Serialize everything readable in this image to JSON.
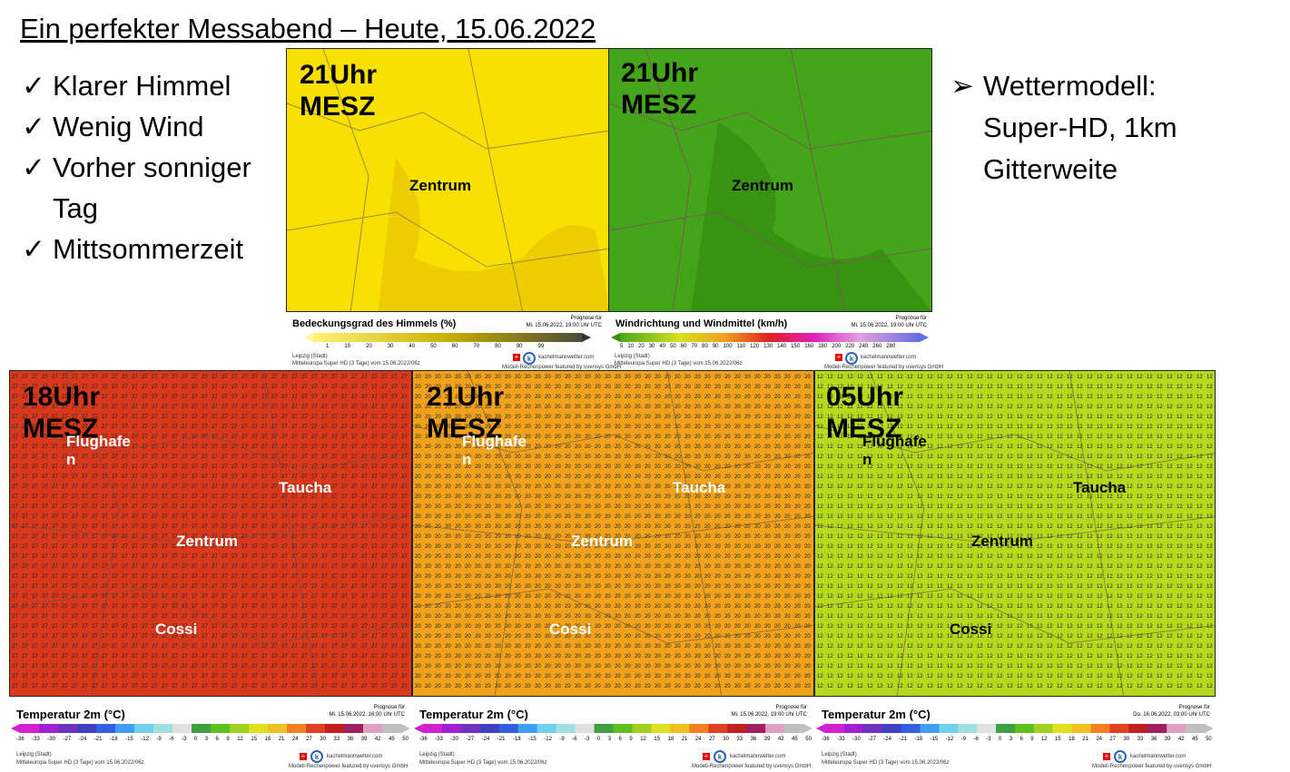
{
  "title": "Ein perfekter Messabend – Heute, 15.06.2022",
  "checklist": [
    {
      "icon": "check-icon",
      "label": "Klarer Himmel"
    },
    {
      "icon": "check-icon",
      "label": "Wenig Wind"
    },
    {
      "icon": "check-icon",
      "label": "Vorher sonniger\nTag"
    },
    {
      "icon": "check-icon",
      "label": "Mittsommerzeit"
    }
  ],
  "model_note": {
    "icon": "arrow-bullet-icon",
    "text": "Wettermodell:\nSuper-HD, 1km\nGitterweite"
  },
  "top_maps": [
    {
      "time": "21Uhr\nMESZ",
      "center": "Zentrum",
      "color": "#f5dc00",
      "legend_title": "Bedeckungsgrad des Himmels (%)",
      "forecast_label": "Prognose für",
      "forecast": "Mi. 15.06.2022, 19:00 Uhr UTC",
      "scale": [
        "1",
        "10",
        "20",
        "30",
        "40",
        "50",
        "60",
        "70",
        "80",
        "90",
        "99"
      ],
      "location": "Leipzig (Stadt)",
      "model": "Mitteleuropa Super HD (3 Tage) vom 15.06.2022/06z",
      "brand": "kachelmannwetter.com",
      "credit": "Modell-Rechenpower featured by uvensys GmbH"
    },
    {
      "time": "21Uhr\nMESZ",
      "center": "Zentrum",
      "color": "#3f9d17",
      "legend_title": "Windrichtung und Windmittel (km/h)",
      "forecast_label": "Prognose für",
      "forecast": "Mi. 15.06.2022, 19:00 Uhr UTC",
      "scale": [
        "5",
        "10",
        "20",
        "30",
        "40",
        "50",
        "60",
        "70",
        "80",
        "90",
        "100",
        "110",
        "120",
        "130",
        "140",
        "150",
        "160",
        "180",
        "200",
        "220",
        "240",
        "260",
        "280"
      ],
      "location": "Leipzig (Stadt)",
      "model": "Mitteleuropa Super HD (3 Tage) vom 15.06.2022/06z",
      "brand": "kachelmannwetter.com",
      "credit": "Modell-Rechenpower featured by uvensys GmbH"
    }
  ],
  "bottom_maps": [
    {
      "time": "18Uhr\nMESZ",
      "flughafen": "Flughafe\nn",
      "taucha": "Taucha",
      "center": "Zentrum",
      "cossi": "Cossi",
      "color": "#d8391c",
      "value": "27",
      "legend_title": "Temperatur 2m (°C)",
      "forecast_label": "Prognose für",
      "forecast": "Mi. 15.06.2022, 16:00 Uhr UTC",
      "location": "Leipzig (Stadt)",
      "model": "Mitteleuropa Super HD (3 Tage) vom 15.06.2022/06z",
      "brand": "kachelmannwetter.com",
      "credit": "Modell-Rechenpower featured by uvensys GmbH"
    },
    {
      "time": "21Uhr\nMESZ",
      "flughafen": "Flughafe\nn",
      "taucha": "Taucha",
      "center": "Zentrum",
      "cossi": "Cossi",
      "color": "#f0a21c",
      "value": "20",
      "legend_title": "Temperatur 2m (°C)",
      "forecast_label": "Prognose für",
      "forecast": "Mi. 15.06.2022, 19:00 Uhr UTC",
      "location": "Leipzig (Stadt)",
      "model": "Mitteleuropa Super HD (3 Tage) vom 15.06.2022/06z",
      "brand": "kachelmannwetter.com",
      "credit": "Modell-Rechenpower featured by uvensys GmbH"
    },
    {
      "time": "05Uhr\nMESZ",
      "flughafen": "Flughafe\nn",
      "taucha": "Taucha",
      "center": "Zentrum",
      "cossi": "Cossi",
      "color": "#b6d91e",
      "value": "12",
      "legend_title": "Temperatur 2m (°C)",
      "forecast_label": "Prognose für",
      "forecast": "Do. 16.06.2022, 03:00 Uhr UTC",
      "location": "Leipzig (Stadt)",
      "model": "Mitteleuropa Super HD (3 Tage) vom 15.06.2022/06z",
      "brand": "kachelmannwetter.com",
      "credit": "Modell-Rechenpower featured by uvensys GmbH"
    }
  ],
  "temp_scale": [
    "-36",
    "-33",
    "-30",
    "-27",
    "-24",
    "-21",
    "-18",
    "-15",
    "-12",
    "-9",
    "-6",
    "-3",
    "0",
    "3",
    "6",
    "9",
    "12",
    "15",
    "18",
    "21",
    "24",
    "27",
    "30",
    "33",
    "36",
    "39",
    "42",
    "45",
    "50"
  ]
}
